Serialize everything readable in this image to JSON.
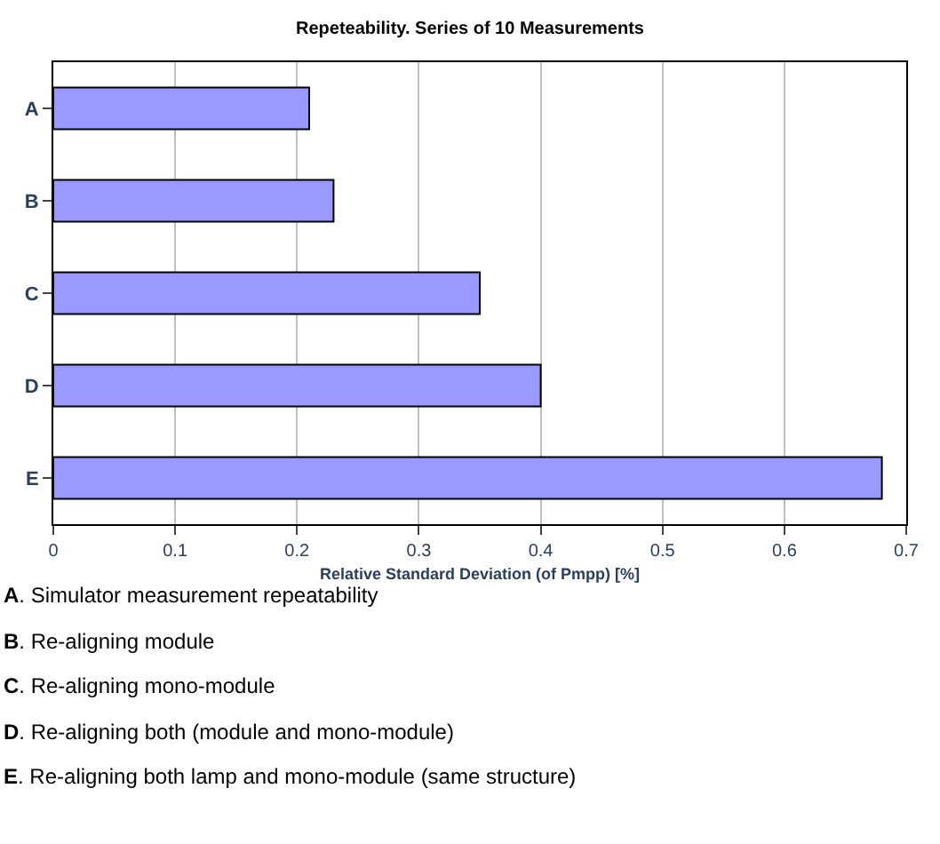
{
  "chart_data": {
    "type": "bar",
    "orientation": "horizontal",
    "title": "Repeteability. Series of 10 Measurements",
    "xlabel": "Relative Standard Deviation (of Pmpp) [%]",
    "categories": [
      "A",
      "B",
      "C",
      "D",
      "E"
    ],
    "values": [
      0.21,
      0.23,
      0.35,
      0.4,
      0.68
    ],
    "color": "#9999ff",
    "xlim": [
      0,
      0.7
    ],
    "xticks": [
      0,
      0.1,
      0.2,
      0.3,
      0.4,
      0.5,
      0.6,
      0.7
    ],
    "grid": "x",
    "legend": false,
    "annotations": [
      "A. Simulator measurement repeatability",
      "B. Re-aligning module",
      "C. Re-aligning mono-module",
      "D. Re-aligning both (module and mono-module)",
      "E. Re-aligning both lamp and mono-module (same structure)"
    ]
  }
}
